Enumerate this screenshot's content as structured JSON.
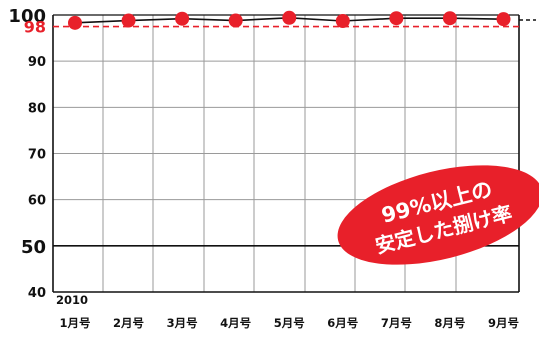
{
  "chart_data": {
    "type": "line",
    "year_label": "2010",
    "categories": [
      "1月号",
      "2月号",
      "3月号",
      "4月号",
      "5月号",
      "6月号",
      "7月号",
      "8月号",
      "9月号"
    ],
    "series": [
      {
        "values": [
          98.3,
          98.8,
          99.2,
          98.8,
          99.4,
          98.7,
          99.3,
          99.3,
          99.1
        ],
        "color": "#e8202a"
      }
    ],
    "ylim": [
      40,
      100
    ],
    "yticks": [
      40,
      50,
      60,
      70,
      80,
      90,
      100
    ],
    "grid": true,
    "reference_line": {
      "value": 97.5,
      "label": "98",
      "color": "#e8202a"
    },
    "badge": {
      "line1": "99%以上の",
      "line2": "安定した捌け率",
      "color": "#e8202a"
    }
  }
}
